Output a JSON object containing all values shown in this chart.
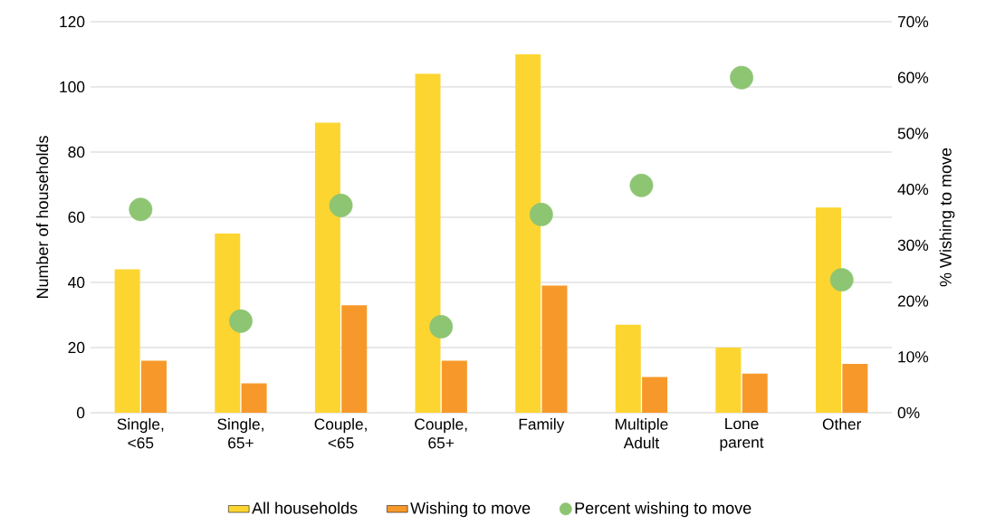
{
  "chart_data": {
    "type": "bar",
    "categories": [
      "Single, <65",
      "Single, 65+",
      "Couple, <65",
      "Couple, 65+",
      "Family",
      "Multiple Adult",
      "Lone parent",
      "Other"
    ],
    "ylabel": "Number of households",
    "y2label": "% Wishing to move",
    "ylim": [
      0,
      120
    ],
    "yticks": [
      0,
      20,
      40,
      60,
      80,
      100,
      120
    ],
    "y2lim": [
      0,
      70
    ],
    "y2ticks": [
      {
        "value": 0,
        "label": "0%"
      },
      {
        "value": 10,
        "label": "10%"
      },
      {
        "value": 20,
        "label": "20%"
      },
      {
        "value": 30,
        "label": "30%"
      },
      {
        "value": 40,
        "label": "40%"
      },
      {
        "value": 50,
        "label": "50%"
      },
      {
        "value": 60,
        "label": "60%"
      },
      {
        "value": 70,
        "label": "70%"
      }
    ],
    "grid": "y",
    "legend": "bottom",
    "series": [
      {
        "name": "All households",
        "color": "#fdd531",
        "values": [
          44,
          55,
          89,
          104,
          110,
          27,
          20,
          63
        ]
      },
      {
        "name": "Wishing to move",
        "color": "#f7992a",
        "values": [
          16,
          9,
          33,
          16,
          39,
          11,
          12,
          15
        ]
      },
      {
        "name": "Percent wishing to move",
        "type": "scatter",
        "axis": "y2",
        "color": "#8dc572",
        "values": [
          36.4,
          16.4,
          37.1,
          15.4,
          35.5,
          40.7,
          60,
          23.8
        ]
      }
    ]
  }
}
